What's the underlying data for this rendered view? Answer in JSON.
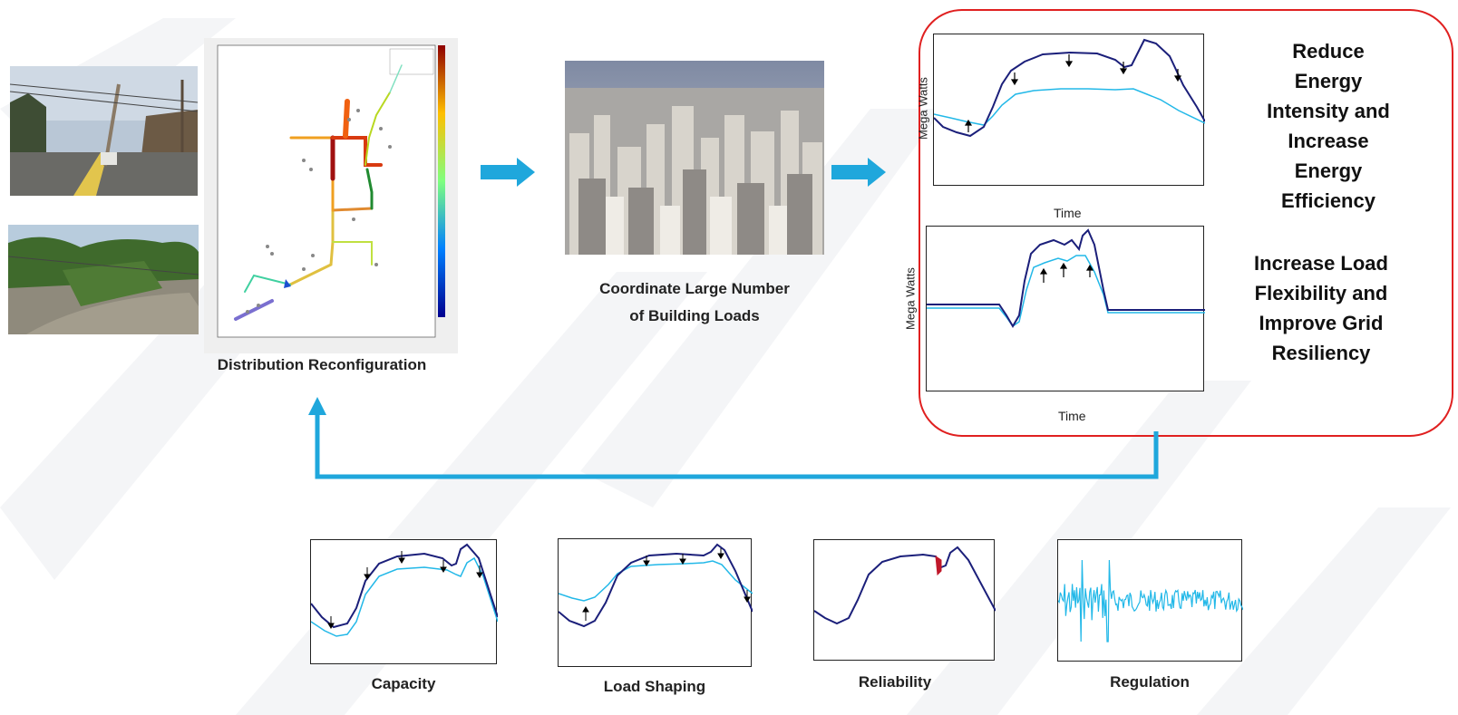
{
  "colors": {
    "arrow_blue": "#1fa7dc",
    "dark_series": "#1b1f7a",
    "light_series": "#22b8e8",
    "red_outline": "#e02020",
    "reliability_mark": "#c0182a"
  },
  "icons": {
    "arrow_right": "arrow-right-icon",
    "arrow_up": "arrow-up-icon"
  },
  "captions": {
    "distribution": "Distribution Reconfiguration",
    "buildings_line1": "Coordinate Large Number",
    "buildings_line2": "of Building Loads"
  },
  "benefits": {
    "energy": [
      "Reduce",
      "Energy",
      "Intensity and",
      "Increase",
      "Energy",
      "Efficiency"
    ],
    "flexibility": [
      "Increase Load",
      "Flexibility and",
      "Improve Grid",
      "Resiliency"
    ]
  },
  "plots": {
    "upper": {
      "ylabel": "Mega Watts",
      "xlabel": "Time"
    },
    "lower": {
      "ylabel": "Mega Watts",
      "xlabel": "Time"
    }
  },
  "services": [
    {
      "label": "Capacity"
    },
    {
      "label": "Load Shaping"
    },
    {
      "label": "Reliability"
    },
    {
      "label": "Regulation"
    }
  ]
}
